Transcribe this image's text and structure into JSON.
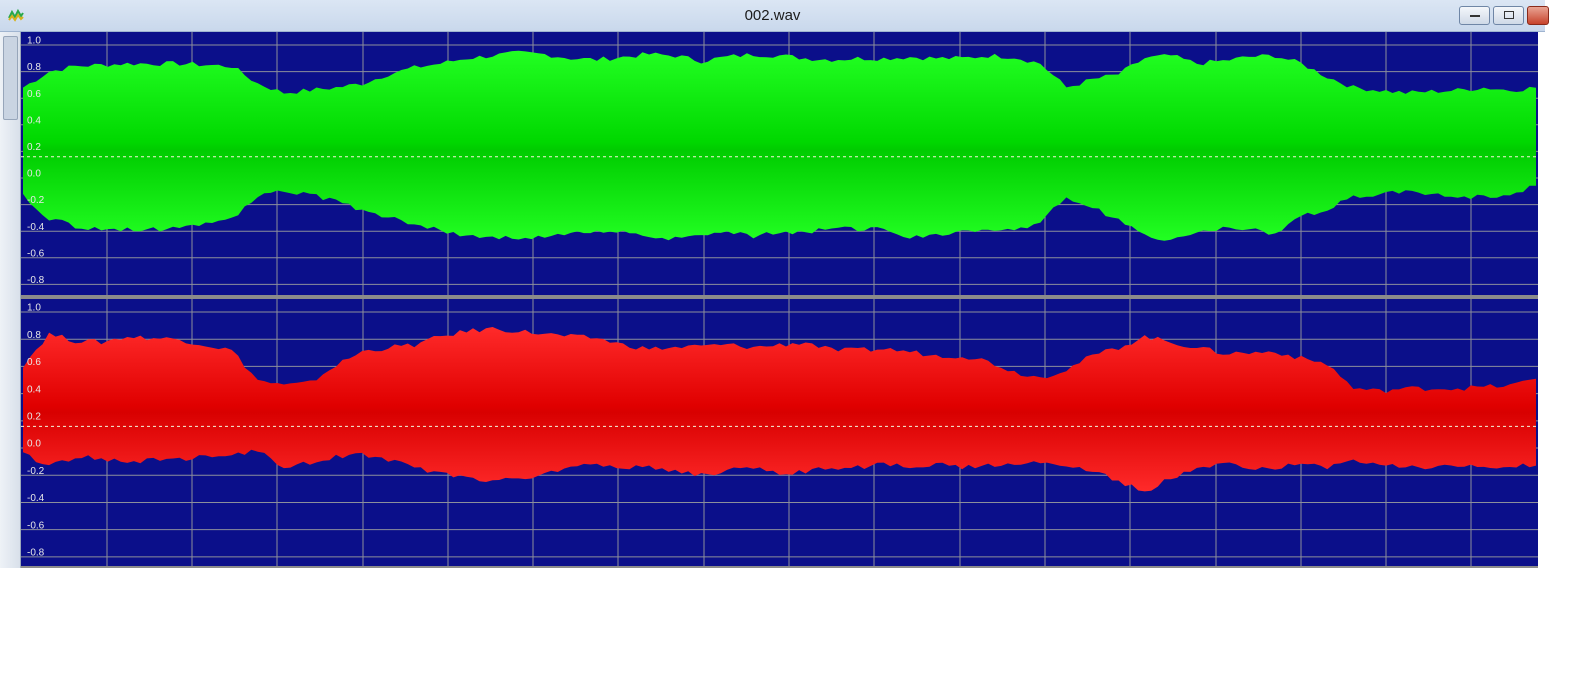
{
  "window": {
    "title": "002.wav",
    "icon": "waveform-app-icon",
    "buttons": {
      "minimize": "minimize-icon",
      "maximize": "maximize-icon",
      "close": "close-icon"
    }
  },
  "colors": {
    "background": "#0b0f8a",
    "grid": "#8c8f9b",
    "channel_left": "#00ff00",
    "channel_right": "#ff0000",
    "zero_line": "#f4f4d8",
    "divider": "#8b8b8b"
  },
  "channels": [
    {
      "name": "",
      "axis_labels": [
        "1.0",
        "0.8",
        "0.6",
        "0.4",
        "0.2",
        "0.0",
        "-0.2",
        "-0.4",
        "-0.6",
        "-0.8"
      ],
      "top_envelope": [
        0.52,
        0.64,
        0.68,
        0.69,
        0.7,
        0.7,
        0.7,
        0.69,
        0.68,
        0.55,
        0.48,
        0.5,
        0.52,
        0.55,
        0.62,
        0.67,
        0.7,
        0.74,
        0.76,
        0.78,
        0.77,
        0.74,
        0.73,
        0.75,
        0.77,
        0.76,
        0.72,
        0.75,
        0.77,
        0.76,
        0.74,
        0.73,
        0.74,
        0.74,
        0.75,
        0.74,
        0.74,
        0.76,
        0.75,
        0.7,
        0.52,
        0.58,
        0.62,
        0.74,
        0.76,
        0.7,
        0.72,
        0.75,
        0.76,
        0.7,
        0.6,
        0.52,
        0.5,
        0.48,
        0.49,
        0.5,
        0.52,
        0.5,
        0.52
      ],
      "bottom_envelope": [
        -0.3,
        -0.46,
        -0.52,
        -0.55,
        -0.55,
        -0.55,
        -0.52,
        -0.5,
        -0.47,
        -0.3,
        -0.26,
        -0.29,
        -0.33,
        -0.4,
        -0.45,
        -0.5,
        -0.55,
        -0.6,
        -0.6,
        -0.62,
        -0.6,
        -0.58,
        -0.57,
        -0.55,
        -0.59,
        -0.62,
        -0.58,
        -0.55,
        -0.6,
        -0.57,
        -0.56,
        -0.55,
        -0.54,
        -0.55,
        -0.6,
        -0.58,
        -0.56,
        -0.55,
        -0.54,
        -0.5,
        -0.3,
        -0.38,
        -0.48,
        -0.6,
        -0.62,
        -0.58,
        -0.53,
        -0.55,
        -0.58,
        -0.45,
        -0.4,
        -0.3,
        -0.28,
        -0.27,
        -0.28,
        -0.3,
        -0.3,
        -0.28,
        -0.22
      ]
    },
    {
      "name": "",
      "axis_labels": [
        "1.0",
        "0.8",
        "0.6",
        "0.4",
        "0.2",
        "0.0",
        "-0.2",
        "-0.4",
        "-0.6",
        "-0.8"
      ],
      "top_envelope": [
        0.45,
        0.68,
        0.63,
        0.62,
        0.66,
        0.65,
        0.64,
        0.6,
        0.56,
        0.34,
        0.3,
        0.32,
        0.45,
        0.55,
        0.58,
        0.6,
        0.66,
        0.7,
        0.72,
        0.7,
        0.68,
        0.66,
        0.65,
        0.6,
        0.57,
        0.58,
        0.59,
        0.6,
        0.58,
        0.6,
        0.62,
        0.56,
        0.56,
        0.57,
        0.55,
        0.52,
        0.52,
        0.48,
        0.4,
        0.36,
        0.42,
        0.52,
        0.58,
        0.66,
        0.62,
        0.58,
        0.54,
        0.54,
        0.55,
        0.5,
        0.46,
        0.28,
        0.26,
        0.28,
        0.28,
        0.28,
        0.29,
        0.3,
        0.35
      ],
      "bottom_envelope": [
        -0.2,
        -0.3,
        -0.22,
        -0.24,
        -0.26,
        -0.25,
        -0.24,
        -0.22,
        -0.2,
        -0.18,
        -0.3,
        -0.27,
        -0.22,
        -0.2,
        -0.25,
        -0.3,
        -0.35,
        -0.38,
        -0.4,
        -0.38,
        -0.36,
        -0.3,
        -0.28,
        -0.3,
        -0.3,
        -0.33,
        -0.36,
        -0.32,
        -0.3,
        -0.35,
        -0.33,
        -0.3,
        -0.3,
        -0.28,
        -0.3,
        -0.28,
        -0.3,
        -0.28,
        -0.28,
        -0.26,
        -0.3,
        -0.32,
        -0.4,
        -0.48,
        -0.38,
        -0.3,
        -0.28,
        -0.3,
        -0.3,
        -0.28,
        -0.3,
        -0.26,
        -0.28,
        -0.3,
        -0.3,
        -0.3,
        -0.3,
        -0.3,
        -0.28
      ]
    }
  ]
}
